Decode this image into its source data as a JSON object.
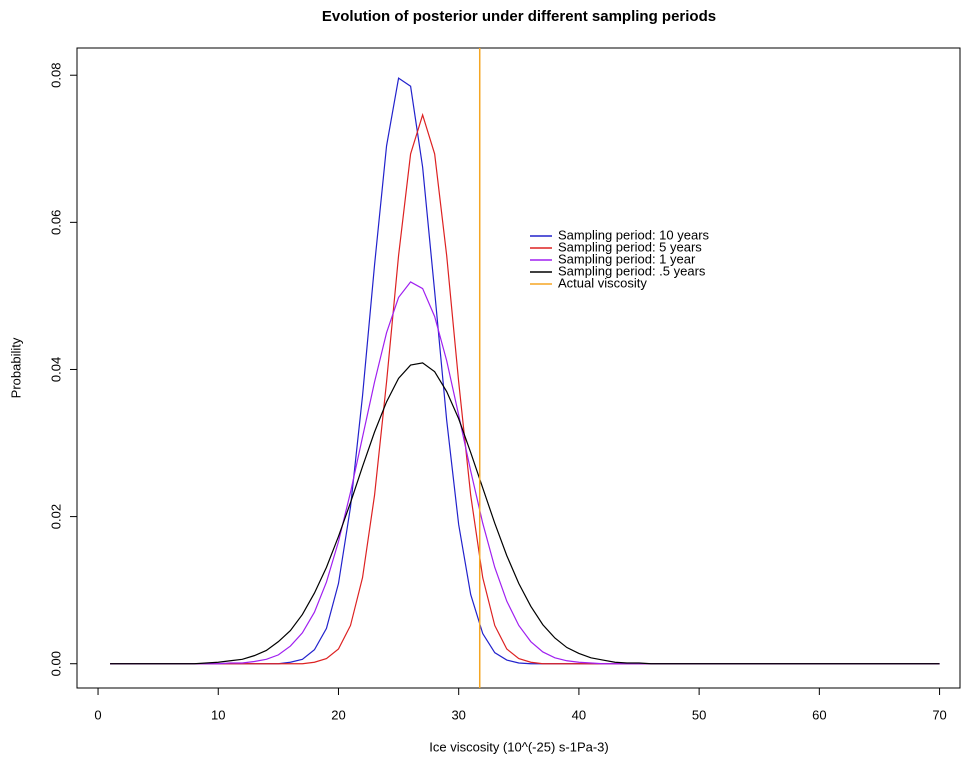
{
  "chart_data": {
    "type": "line",
    "title": "Evolution of posterior under different sampling periods",
    "xlabel": "Ice viscosity (10^(-25) s-1Pa-3)",
    "ylabel": "Probability",
    "x": [
      1,
      2,
      3,
      4,
      5,
      6,
      7,
      8,
      9,
      10,
      11,
      12,
      13,
      14,
      15,
      16,
      17,
      18,
      19,
      20,
      21,
      22,
      23,
      24,
      25,
      26,
      27,
      28,
      29,
      30,
      31,
      32,
      33,
      34,
      35,
      36,
      37,
      38,
      39,
      40,
      41,
      42,
      43,
      44,
      45,
      46,
      47,
      48,
      49,
      50,
      51,
      52,
      53,
      54,
      55,
      56,
      57,
      58,
      59,
      60,
      61,
      62,
      63,
      64,
      65,
      66,
      67,
      68,
      69,
      70
    ],
    "series": [
      {
        "name": "Sampling period: 10 years",
        "color": "#2222cc",
        "values": [
          0,
          0,
          0,
          0,
          0,
          0,
          0,
          0,
          0,
          0,
          0,
          0,
          0,
          0,
          0,
          0.0002,
          0.0006,
          0.0019,
          0.0048,
          0.0109,
          0.0213,
          0.0364,
          0.0542,
          0.0704,
          0.0796,
          0.0785,
          0.0675,
          0.0506,
          0.0331,
          0.0189,
          0.0094,
          0.0041,
          0.0015,
          0.0005,
          0.0001,
          0,
          0,
          0,
          0,
          0,
          0,
          0,
          0,
          0,
          0,
          0,
          0,
          0,
          0,
          0,
          0,
          0,
          0,
          0,
          0,
          0,
          0,
          0,
          0,
          0,
          0,
          0,
          0,
          0,
          0,
          0,
          0,
          0,
          0,
          0
        ]
      },
      {
        "name": "Sampling period: 5 years",
        "color": "#dd2222",
        "values": [
          0,
          0,
          0,
          0,
          0,
          0,
          0,
          0,
          0,
          0,
          0,
          0,
          0,
          0,
          0,
          0,
          0,
          0.0002,
          0.0007,
          0.002,
          0.0052,
          0.0117,
          0.0229,
          0.0383,
          0.0555,
          0.0693,
          0.0746,
          0.0693,
          0.0555,
          0.0383,
          0.0229,
          0.0117,
          0.0052,
          0.002,
          0.0007,
          0.0002,
          0,
          0,
          0,
          0,
          0,
          0,
          0,
          0,
          0,
          0,
          0,
          0,
          0,
          0,
          0,
          0,
          0,
          0,
          0,
          0,
          0,
          0,
          0,
          0,
          0,
          0,
          0,
          0,
          0,
          0,
          0,
          0,
          0,
          0
        ]
      },
      {
        "name": "Sampling period: 1 year",
        "color": "#a020f0",
        "values": [
          0,
          0,
          0,
          0,
          0,
          0,
          0,
          0,
          0,
          0,
          0.0001,
          0.0001,
          0.0003,
          0.0006,
          0.0012,
          0.0024,
          0.0042,
          0.007,
          0.0111,
          0.0166,
          0.0233,
          0.0308,
          0.0383,
          0.045,
          0.0498,
          0.0519,
          0.051,
          0.0472,
          0.0412,
          0.0338,
          0.0262,
          0.0191,
          0.0131,
          0.0085,
          0.0052,
          0.003,
          0.0016,
          0.0008,
          0.0004,
          0.0002,
          0.0001,
          0,
          0,
          0,
          0,
          0,
          0,
          0,
          0,
          0,
          0,
          0,
          0,
          0,
          0,
          0,
          0,
          0,
          0,
          0,
          0,
          0,
          0,
          0,
          0,
          0,
          0,
          0,
          0,
          0
        ]
      },
      {
        "name": "Sampling period: .5 years",
        "color": "#000000",
        "values": [
          0,
          0,
          0,
          0,
          0,
          0,
          0,
          0,
          0.0001,
          0.0002,
          0.0004,
          0.0006,
          0.0011,
          0.0018,
          0.003,
          0.0045,
          0.0067,
          0.0096,
          0.0131,
          0.0173,
          0.0219,
          0.0268,
          0.0315,
          0.0356,
          0.0388,
          0.0406,
          0.0409,
          0.0397,
          0.037,
          0.0333,
          0.0287,
          0.0239,
          0.0191,
          0.0147,
          0.0109,
          0.0078,
          0.0053,
          0.0035,
          0.0022,
          0.0014,
          0.0008,
          0.0005,
          0.0002,
          0.0001,
          0.0001,
          0,
          0,
          0,
          0,
          0,
          0,
          0,
          0,
          0,
          0,
          0,
          0,
          0,
          0,
          0,
          0,
          0,
          0,
          0,
          0,
          0,
          0,
          0,
          0,
          0
        ]
      }
    ],
    "vlines": [
      {
        "name": "Actual viscosity",
        "color": "#f5a623",
        "x": 31.75
      }
    ],
    "xlim": [
      -1.75,
      71.7
    ],
    "ylim": [
      -0.0033,
      0.0837
    ],
    "xticks": [
      0,
      10,
      20,
      30,
      40,
      50,
      60,
      70
    ],
    "yticks": [
      {
        "value": 0,
        "label": "0.00"
      },
      {
        "value": 0.02,
        "label": "0.02"
      },
      {
        "value": 0.04,
        "label": "0.04"
      },
      {
        "value": 0.06,
        "label": "0.06"
      },
      {
        "value": 0.08,
        "label": "0.08"
      }
    ]
  }
}
